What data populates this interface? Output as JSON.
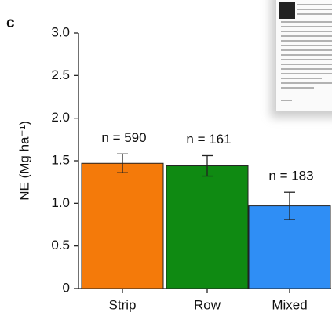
{
  "chart_data": {
    "type": "bar",
    "panel_label": "c",
    "ylabel": "NE (Mg ha⁻¹)",
    "categories": [
      "Strip",
      "Row",
      "Mixed"
    ],
    "values": [
      1.47,
      1.44,
      0.97
    ],
    "errors": [
      0.11,
      0.12,
      0.16
    ],
    "colors": [
      "#f47a0a",
      "#0f8a12",
      "#2f8ef5"
    ],
    "annotations": [
      "n = 590",
      "n = 161",
      "n = 183"
    ],
    "ylim": [
      0,
      3.0
    ],
    "yticks": [
      0,
      {
        "value": 0.5,
        "label": "0.5"
      },
      {
        "value": 1.0,
        "label": "1.0"
      },
      {
        "value": 1.5,
        "label": "1.5"
      },
      {
        "value": 2.0,
        "label": "2.0"
      },
      {
        "value": 2.5,
        "label": "2.5"
      },
      {
        "value": 3.0,
        "label": "3.0"
      }
    ]
  }
}
